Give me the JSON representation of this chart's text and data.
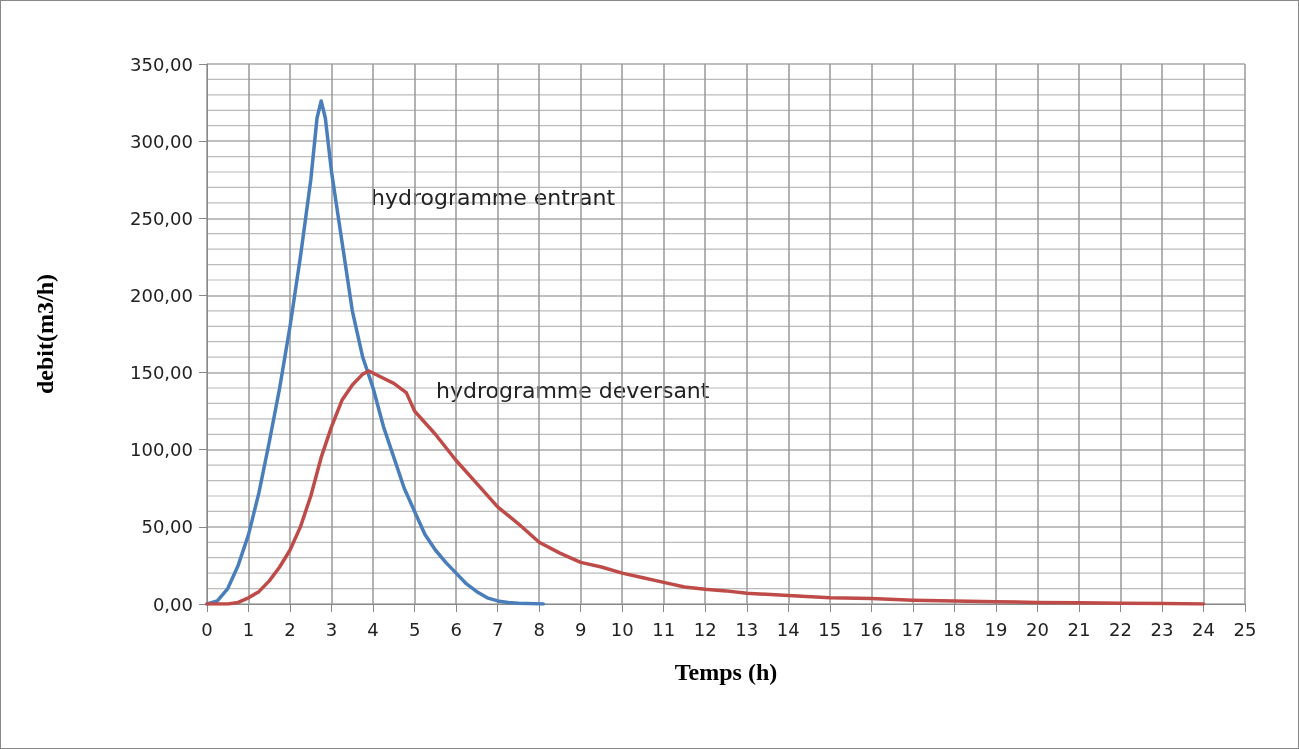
{
  "chart_data": {
    "type": "line",
    "xlabel": "Temps (h)",
    "ylabel": "debit(m3/h)",
    "series": [
      {
        "name": "hydrogramme entrant",
        "color": "#4a7ebb",
        "x": [
          0,
          0.25,
          0.5,
          0.75,
          1,
          1.25,
          1.5,
          1.75,
          2,
          2.25,
          2.5,
          2.65,
          2.75,
          2.85,
          3,
          3.25,
          3.5,
          3.75,
          4,
          4.25,
          4.5,
          4.75,
          5,
          5.25,
          5.5,
          5.75,
          6,
          6.25,
          6.5,
          6.75,
          7,
          7.25,
          7.5,
          8.1
        ],
        "values": [
          0,
          2,
          10,
          25,
          45,
          72,
          105,
          140,
          180,
          225,
          275,
          315,
          326,
          315,
          280,
          235,
          190,
          160,
          140,
          115,
          95,
          75,
          60,
          45,
          35,
          27,
          20,
          13,
          8,
          4,
          2,
          1,
          0.5,
          0
        ]
      },
      {
        "name": "hydrogramme deversant",
        "color": "#be4b48",
        "x": [
          0,
          0.5,
          0.75,
          1,
          1.25,
          1.5,
          1.75,
          2,
          2.25,
          2.5,
          2.75,
          3,
          3.25,
          3.5,
          3.75,
          3.9,
          4.2,
          4.5,
          4.8,
          5,
          5.5,
          6,
          6.5,
          7,
          7.5,
          8,
          8.5,
          9,
          9.5,
          10,
          10.5,
          11,
          11.5,
          12,
          12.5,
          13,
          14,
          15,
          16,
          17,
          18,
          19,
          20,
          21,
          22,
          23,
          24
        ],
        "values": [
          0,
          0,
          1,
          4,
          8,
          15,
          24,
          35,
          50,
          70,
          95,
          115,
          132,
          142,
          149,
          151,
          147,
          143,
          137,
          125,
          110,
          93,
          78,
          63,
          52,
          40,
          33,
          27,
          24,
          20,
          17,
          14,
          11,
          9.5,
          8.5,
          7,
          5.5,
          4,
          3.5,
          2.5,
          2,
          1.5,
          1,
          0.8,
          0.5,
          0.4,
          0
        ]
      }
    ],
    "xlim": [
      0,
      25
    ],
    "xticks": [
      0,
      1,
      2,
      3,
      4,
      5,
      6,
      7,
      8,
      9,
      10,
      11,
      12,
      13,
      14,
      15,
      16,
      17,
      18,
      19,
      20,
      21,
      22,
      23,
      24,
      25
    ],
    "ylim": [
      0,
      350
    ],
    "yticks": [
      {
        "value": 0,
        "label": "0,00"
      },
      {
        "value": 10,
        "label": null
      },
      {
        "value": 20,
        "label": null
      },
      {
        "value": 30,
        "label": null
      },
      {
        "value": 40,
        "label": null
      },
      {
        "value": 50,
        "label": "50,00"
      },
      {
        "value": 60,
        "label": null
      },
      {
        "value": 70,
        "label": null
      },
      {
        "value": 80,
        "label": null
      },
      {
        "value": 90,
        "label": null
      },
      {
        "value": 100,
        "label": "100,00"
      },
      {
        "value": 110,
        "label": null
      },
      {
        "value": 120,
        "label": null
      },
      {
        "value": 130,
        "label": null
      },
      {
        "value": 140,
        "label": null
      },
      {
        "value": 150,
        "label": "150,00"
      },
      {
        "value": 160,
        "label": null
      },
      {
        "value": 170,
        "label": null
      },
      {
        "value": 180,
        "label": null
      },
      {
        "value": 190,
        "label": null
      },
      {
        "value": 200,
        "label": "200,00"
      },
      {
        "value": 210,
        "label": null
      },
      {
        "value": 220,
        "label": null
      },
      {
        "value": 230,
        "label": null
      },
      {
        "value": 240,
        "label": null
      },
      {
        "value": 250,
        "label": "250,00"
      },
      {
        "value": 260,
        "label": null
      },
      {
        "value": 270,
        "label": null
      },
      {
        "value": 280,
        "label": null
      },
      {
        "value": 290,
        "label": null
      },
      {
        "value": 300,
        "label": "300,00"
      },
      {
        "value": 310,
        "label": null
      },
      {
        "value": 320,
        "label": null
      },
      {
        "value": 330,
        "label": null
      },
      {
        "value": 340,
        "label": null
      },
      {
        "value": 350,
        "label": "350,00"
      }
    ],
    "grid": true,
    "legend": false,
    "marker": "none",
    "line_style": "solid"
  }
}
